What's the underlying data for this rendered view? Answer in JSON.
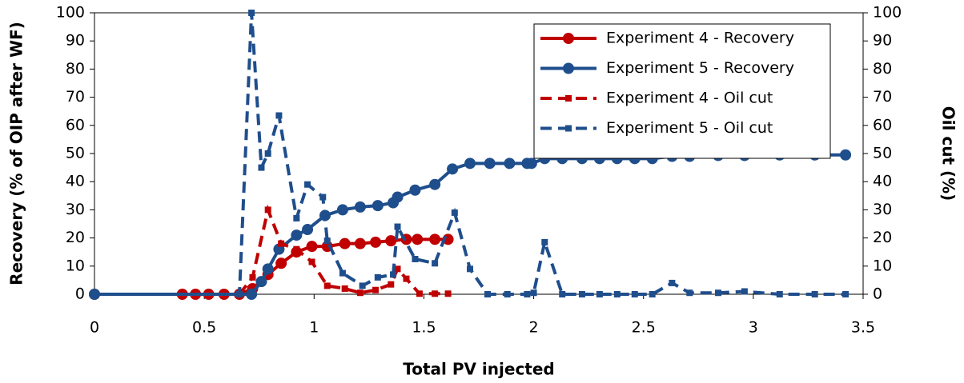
{
  "chart_data": {
    "type": "line",
    "x_label": "Total PV injected",
    "y_label": "Recovery (% of OIP after WF)",
    "y2_label": "Oil cut (%)",
    "xlim": [
      0,
      3.5
    ],
    "xticks": [
      0,
      0.5,
      1,
      1.5,
      2,
      2.5,
      3,
      3.5
    ],
    "ylim": [
      0,
      100
    ],
    "yticks": [
      0,
      10,
      20,
      30,
      40,
      50,
      60,
      70,
      80,
      90,
      100
    ],
    "y2lim": [
      0,
      100
    ],
    "y2ticks": [
      0,
      10,
      20,
      30,
      40,
      50,
      60,
      70,
      80,
      90,
      100
    ],
    "legend": "top-right",
    "series": [
      {
        "name": "Experiment 4 - Recovery",
        "color": "#c00000",
        "marker": "circle",
        "dashed": false,
        "axis": "y",
        "x": [
          0,
          0.4,
          0.46,
          0.52,
          0.59,
          0.66,
          0.72,
          0.79,
          0.85,
          0.92,
          0.99,
          1.06,
          1.14,
          1.21,
          1.28,
          1.35,
          1.42,
          1.47,
          1.55,
          1.61
        ],
        "values": [
          0,
          0,
          0,
          0,
          0,
          0,
          2,
          7,
          11,
          15,
          17,
          17,
          18,
          18,
          18.5,
          19,
          19.5,
          19.5,
          19.5,
          19.5
        ]
      },
      {
        "name": "Experiment 5 - Recovery",
        "color": "#1f4e8c",
        "marker": "circle",
        "dashed": false,
        "axis": "y",
        "x": [
          0,
          0.715,
          0.76,
          0.79,
          0.84,
          0.92,
          0.97,
          1.05,
          1.13,
          1.21,
          1.29,
          1.36,
          1.38,
          1.46,
          1.55,
          1.63,
          1.71,
          1.8,
          1.89,
          1.97,
          1.99,
          2.05,
          2.13,
          2.22,
          2.3,
          2.38,
          2.46,
          2.54,
          2.63,
          2.71,
          2.84,
          2.96,
          3.12,
          3.28,
          3.42
        ],
        "values": [
          0,
          0,
          4.5,
          9,
          16,
          21,
          23,
          28,
          30,
          31,
          31.5,
          32.5,
          34.5,
          37,
          39,
          44.5,
          46.5,
          46.5,
          46.5,
          46.5,
          46.5,
          48.2,
          48.2,
          48.2,
          48.2,
          48.2,
          48.2,
          48.2,
          49,
          49,
          49.3,
          49.3,
          49.5,
          49.5,
          49.5
        ]
      },
      {
        "name": "Experiment 4 - Oil cut",
        "color": "#c00000",
        "marker": "square",
        "dashed": true,
        "axis": "y2",
        "x": [
          0.66,
          0.72,
          0.79,
          0.85,
          0.92,
          0.99,
          1.06,
          1.14,
          1.21,
          1.28,
          1.35,
          1.38,
          1.42,
          1.48,
          1.55,
          1.61
        ],
        "values": [
          0,
          6,
          30,
          18,
          16,
          11.5,
          3,
          2,
          0.5,
          1.5,
          3.5,
          9,
          5.5,
          0.2,
          0.2,
          0.2
        ]
      },
      {
        "name": "Experiment 5 - Oil cut",
        "color": "#1f4e8c",
        "marker": "square",
        "dashed": true,
        "axis": "y2",
        "x": [
          0,
          0.66,
          0.715,
          0.76,
          0.79,
          0.84,
          0.92,
          0.97,
          1.04,
          1.06,
          1.13,
          1.22,
          1.29,
          1.36,
          1.38,
          1.46,
          1.55,
          1.64,
          1.71,
          1.79,
          1.88,
          1.97,
          2.0,
          2.05,
          2.13,
          2.22,
          2.3,
          2.38,
          2.46,
          2.54,
          2.63,
          2.71,
          2.84,
          2.96,
          3.12,
          3.28,
          3.42
        ],
        "values": [
          0,
          0,
          100,
          45,
          50,
          63.5,
          27,
          39,
          34.5,
          19,
          7.5,
          3,
          6,
          7,
          24,
          12.5,
          11,
          29,
          9,
          0,
          0,
          0,
          0.5,
          18.5,
          0,
          0,
          0,
          0,
          0,
          0,
          4,
          0.5,
          0.5,
          1,
          0,
          0,
          0
        ]
      }
    ]
  }
}
